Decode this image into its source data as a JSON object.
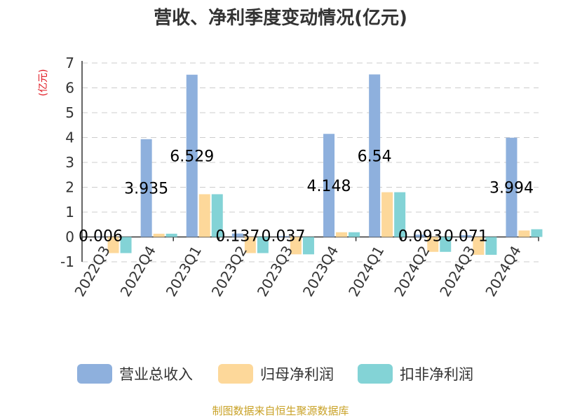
{
  "chart_data": {
    "type": "bar",
    "title": "营收、净利季度变动情况(亿元)",
    "unit_label": "(亿元)",
    "categories": [
      "2022Q3",
      "2022Q4",
      "2023Q1",
      "2023Q2",
      "2023Q3",
      "2023Q4",
      "2024Q1",
      "2024Q2",
      "2024Q3",
      "2024Q4"
    ],
    "series": [
      {
        "name": "营业总收入",
        "color": "#8eb0dd",
        "values": [
          0.006,
          3.935,
          6.529,
          0.137,
          0.037,
          4.148,
          6.54,
          0.093,
          0.071,
          3.994
        ]
      },
      {
        "name": "归母净利润",
        "color": "#fdd89a",
        "values": [
          -0.65,
          0.13,
          1.72,
          -0.65,
          -0.7,
          0.19,
          1.8,
          -0.6,
          -0.72,
          0.26
        ]
      },
      {
        "name": "扣非净利润",
        "color": "#83d3d6",
        "values": [
          -0.65,
          0.13,
          1.72,
          -0.65,
          -0.7,
          0.19,
          1.8,
          -0.6,
          -0.72,
          0.31
        ]
      }
    ],
    "data_labels": [
      "0.006",
      "3.935",
      "6.529",
      "0.137",
      "0.037",
      "4.148",
      "6.54",
      "0.093",
      "0.071",
      "3.994"
    ],
    "ylim": [
      -1,
      7
    ],
    "yticks": [
      -1,
      0,
      1,
      2,
      3,
      4,
      5,
      6,
      7
    ],
    "grid": true,
    "legend_position": "bottom"
  },
  "source_text": "制图数据来自恒生聚源数据库"
}
